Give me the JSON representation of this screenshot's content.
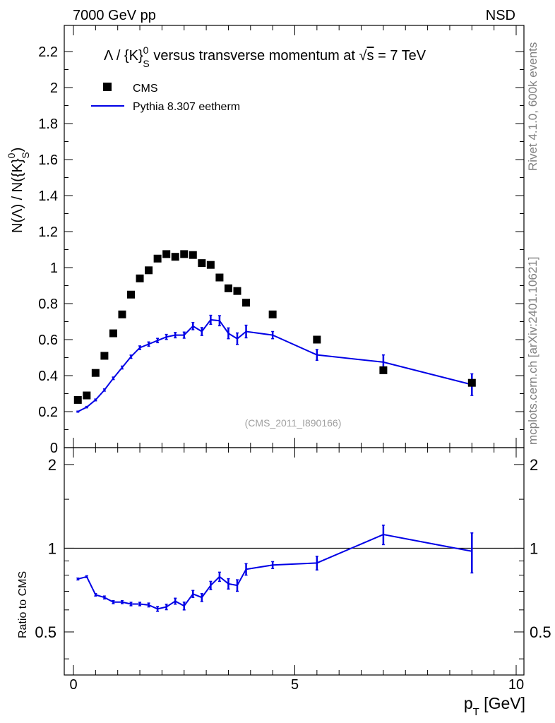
{
  "header": {
    "left": "7000 GeV pp",
    "right": "NSD",
    "side_top": "Rivet 4.1.0,  600k events",
    "side_bottom": "mcplots.cern.ch [arXiv:2401.10621]"
  },
  "main_title": {
    "prefix": "Λ / {K}",
    "sup": "0",
    "sub": "S",
    "mid": " versus transverse momentum at ",
    "root": "√",
    "s": "s",
    "suffix": " = 7 TeV"
  },
  "ylabel": {
    "text": "N(Λ)  /  N({K}",
    "sup": "0",
    "sub": "S",
    "close": ")"
  },
  "watermark": "(CMS_2011_I890166)",
  "legend": {
    "data": "CMS",
    "mc": "Pythia 8.307 eetherm"
  },
  "ratio_ylabel": "Ratio to CMS",
  "xlabel": {
    "p": "p",
    "sub": "T",
    "unit": " [GeV]"
  },
  "colors": {
    "data": "#000000",
    "mc": "#0000e6",
    "frame": "#000000",
    "side": "#808080"
  },
  "chart_data": [
    {
      "type": "scatter",
      "panel": "main",
      "xlim": [
        0,
        10
      ],
      "ylim": [
        0,
        2.35
      ],
      "yticks": [
        0,
        0.2,
        0.4,
        0.6,
        0.8,
        1,
        1.2,
        1.4,
        1.6,
        1.8,
        2,
        2.2
      ],
      "ytick_labels": [
        "0",
        "0.2",
        "0.4",
        "0.6",
        "0.8",
        "1",
        "1.2",
        "1.4",
        "1.6",
        "1.8",
        "2",
        "2.2"
      ],
      "series": [
        {
          "name": "CMS",
          "style": "markers",
          "x": [
            0.1,
            0.3,
            0.5,
            0.7,
            0.9,
            1.1,
            1.3,
            1.5,
            1.7,
            1.9,
            2.1,
            2.3,
            2.5,
            2.7,
            2.9,
            3.1,
            3.3,
            3.5,
            3.7,
            3.9,
            4.5,
            5.5,
            7.0,
            9.0
          ],
          "y": [
            0.265,
            0.29,
            0.415,
            0.51,
            0.635,
            0.74,
            0.85,
            0.94,
            0.985,
            1.05,
            1.075,
            1.06,
            1.075,
            1.07,
            1.025,
            1.015,
            0.945,
            0.885,
            0.87,
            0.805,
            0.74,
            0.6,
            0.43,
            0.36
          ]
        },
        {
          "name": "Pythia 8.307 eetherm",
          "style": "line",
          "x": [
            0.1,
            0.3,
            0.5,
            0.7,
            0.9,
            1.1,
            1.3,
            1.5,
            1.7,
            1.9,
            2.1,
            2.3,
            2.5,
            2.7,
            2.9,
            3.1,
            3.3,
            3.5,
            3.7,
            3.9,
            4.5,
            5.5,
            7.0,
            9.0
          ],
          "y": [
            0.2,
            0.225,
            0.265,
            0.32,
            0.385,
            0.445,
            0.505,
            0.555,
            0.575,
            0.595,
            0.615,
            0.625,
            0.625,
            0.675,
            0.645,
            0.71,
            0.705,
            0.635,
            0.605,
            0.645,
            0.625,
            0.515,
            0.475,
            0.35
          ],
          "yerr": [
            0.003,
            0.004,
            0.005,
            0.006,
            0.007,
            0.008,
            0.009,
            0.01,
            0.012,
            0.012,
            0.014,
            0.015,
            0.017,
            0.02,
            0.022,
            0.025,
            0.028,
            0.03,
            0.032,
            0.035,
            0.02,
            0.03,
            0.04,
            0.06
          ]
        }
      ]
    },
    {
      "type": "line",
      "panel": "ratio",
      "xlim": [
        0,
        10
      ],
      "ylim": [
        0.35,
        2.3
      ],
      "scale": "log",
      "reference_line": 1,
      "yticks": [
        0.5,
        1,
        2
      ],
      "ytick_labels": [
        "0.5",
        "1",
        "2"
      ],
      "xticks": [
        0,
        5,
        10
      ],
      "xtick_labels": [
        "0",
        "5",
        "10"
      ],
      "series": [
        {
          "name": "Pythia 8.307 eetherm / CMS",
          "x": [
            0.1,
            0.3,
            0.5,
            0.7,
            0.9,
            1.1,
            1.3,
            1.5,
            1.7,
            1.9,
            2.1,
            2.3,
            2.5,
            2.7,
            2.9,
            3.1,
            3.3,
            3.5,
            3.7,
            3.9,
            4.5,
            5.5,
            7.0,
            9.0
          ],
          "y": [
            0.775,
            0.79,
            0.68,
            0.665,
            0.64,
            0.64,
            0.63,
            0.63,
            0.625,
            0.605,
            0.615,
            0.645,
            0.62,
            0.685,
            0.665,
            0.735,
            0.79,
            0.745,
            0.735,
            0.84,
            0.87,
            0.885,
            1.12,
            0.975
          ],
          "yerr": [
            0.006,
            0.006,
            0.007,
            0.008,
            0.008,
            0.008,
            0.009,
            0.009,
            0.01,
            0.012,
            0.014,
            0.016,
            0.02,
            0.02,
            0.022,
            0.025,
            0.03,
            0.032,
            0.035,
            0.04,
            0.025,
            0.05,
            0.09,
            0.16
          ]
        }
      ]
    }
  ]
}
